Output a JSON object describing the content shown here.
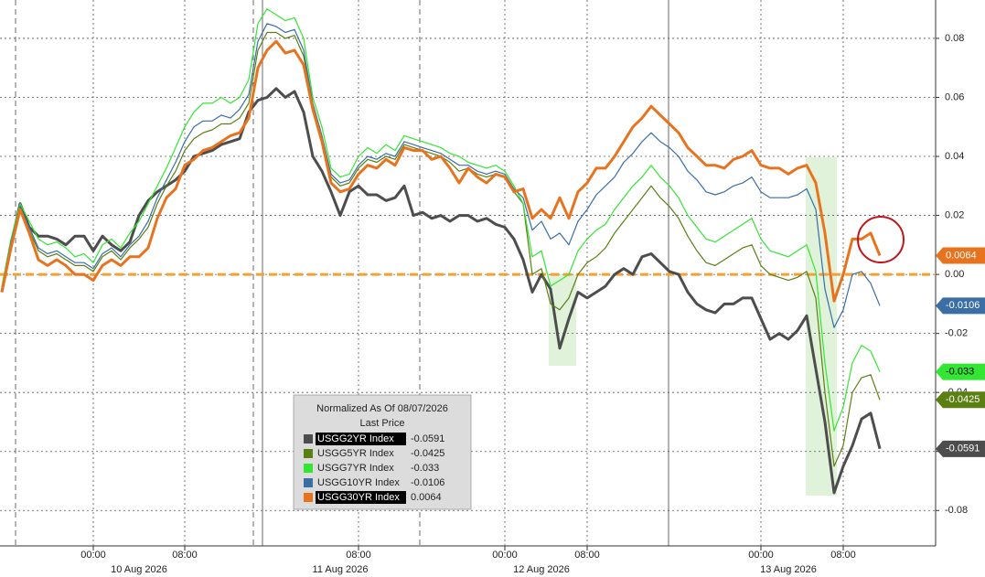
{
  "chart_data": {
    "type": "line",
    "categories": [
      null,
      null,
      null,
      null,
      null,
      null,
      null,
      null,
      null,
      null,
      "00:00",
      null,
      null,
      null,
      null,
      null,
      null,
      null,
      null,
      null,
      "08:00",
      null,
      null,
      null,
      null,
      null,
      null,
      null,
      null,
      null,
      null,
      null,
      null,
      null,
      null,
      null,
      null,
      null,
      null,
      "08:00",
      null,
      null,
      null,
      null,
      null,
      null,
      null,
      null,
      null,
      null,
      null,
      null,
      null,
      null,
      null,
      "00:00",
      null,
      null,
      null,
      null,
      null,
      null,
      null,
      null,
      "08:00",
      null,
      null,
      null,
      null,
      null,
      null,
      null,
      null,
      null,
      null,
      null,
      null,
      null,
      null,
      null,
      null,
      null,
      null,
      "00:00",
      null,
      null,
      null,
      null,
      null,
      null,
      null,
      null,
      "08:00",
      null,
      null,
      null,
      null
    ],
    "day_categories": [
      null,
      null,
      null,
      null,
      null,
      null,
      null,
      null,
      null,
      null,
      null,
      null,
      null,
      null,
      null,
      "10 Aug 2026",
      null,
      null,
      null,
      null,
      null,
      null,
      null,
      null,
      null,
      null,
      null,
      null,
      null,
      null,
      null,
      null,
      null,
      null,
      null,
      null,
      null,
      "11 Aug 2026",
      null,
      null,
      null,
      null,
      null,
      null,
      null,
      null,
      null,
      null,
      null,
      null,
      null,
      null,
      null,
      null,
      null,
      null,
      null,
      null,
      null,
      "12 Aug 2026",
      null,
      null,
      null,
      null,
      null,
      null,
      null,
      null,
      null,
      null,
      null,
      null,
      null,
      null,
      null,
      null,
      null,
      null,
      null,
      null,
      null,
      null,
      null,
      null,
      null,
      null,
      "13 Aug 2026",
      null,
      null,
      null,
      null,
      null,
      null,
      null,
      null,
      null,
      null
    ],
    "ylim": [
      -0.092,
      0.093
    ],
    "yticks": [
      0.08,
      0.06,
      0.04,
      0.02,
      {
        "value": 0,
        "label": "0.00"
      },
      -0.02,
      -0.04,
      -0.06,
      -0.08
    ],
    "grid": true,
    "zero_line_color": "#f5a030",
    "legend_title": "Normalized As Of 08/07/2026",
    "legend_subtitle": "Last Price",
    "series": [
      {
        "name": "USGG2YR Index",
        "color": "#4d4d4d",
        "width": 3,
        "legend_highlight": true,
        "values": [
          -0.006,
          0.01,
          0.024,
          0.016,
          0.013,
          0.013,
          0.012,
          0.01,
          0.013,
          0.013,
          0.008,
          0.013,
          0.01,
          0.008,
          0.011,
          0.02,
          0.025,
          0.028,
          0.03,
          0.032,
          0.035,
          0.04,
          0.041,
          0.042,
          0.044,
          0.045,
          0.046,
          0.055,
          0.059,
          0.06,
          0.063,
          0.06,
          0.062,
          0.055,
          0.04,
          0.035,
          0.028,
          0.02,
          0.028,
          0.03,
          0.027,
          0.027,
          0.025,
          0.026,
          0.03,
          0.02,
          0.021,
          0.019,
          0.02,
          0.018,
          0.02,
          0.02,
          0.018,
          0.019,
          0.017,
          0.016,
          0.012,
          0.005,
          -0.006,
          0.0,
          -0.005,
          -0.025,
          -0.015,
          -0.006,
          -0.008,
          -0.006,
          -0.004,
          0.0,
          0.002,
          0.0,
          0.006,
          0.007,
          0.004,
          0.001,
          0.0,
          -0.006,
          -0.01,
          -0.012,
          -0.013,
          -0.01,
          -0.01,
          -0.008,
          -0.008,
          -0.015,
          -0.022,
          -0.02,
          -0.022,
          -0.019,
          -0.014,
          -0.032,
          -0.05,
          -0.074,
          -0.065,
          -0.058,
          -0.049,
          -0.047,
          -0.0591
        ]
      },
      {
        "name": "USGG5YR Index",
        "color": "#5b7f12",
        "width": 1.2,
        "legend_highlight": false,
        "values": [
          -0.005,
          0.01,
          0.023,
          0.015,
          0.008,
          0.006,
          0.007,
          0.005,
          0.003,
          0.003,
          0.001,
          0.006,
          0.008,
          0.005,
          0.009,
          0.012,
          0.016,
          0.024,
          0.03,
          0.035,
          0.042,
          0.046,
          0.048,
          0.049,
          0.051,
          0.051,
          0.053,
          0.058,
          0.076,
          0.082,
          0.082,
          0.08,
          0.081,
          0.074,
          0.057,
          0.046,
          0.033,
          0.03,
          0.031,
          0.036,
          0.039,
          0.038,
          0.04,
          0.039,
          0.044,
          0.043,
          0.042,
          0.041,
          0.04,
          0.038,
          0.035,
          0.036,
          0.034,
          0.033,
          0.034,
          0.033,
          0.028,
          0.024,
          0.0,
          0.002,
          -0.01,
          -0.012,
          -0.008,
          0.0,
          0.004,
          0.006,
          0.009,
          0.014,
          0.018,
          0.022,
          0.026,
          0.03,
          0.026,
          0.023,
          0.019,
          0.013,
          0.008,
          0.004,
          0.003,
          0.005,
          0.007,
          0.009,
          0.01,
          0.003,
          0.0,
          -0.001,
          -0.002,
          -0.001,
          0.001,
          -0.008,
          -0.04,
          -0.065,
          -0.058,
          -0.04,
          -0.035,
          -0.034,
          -0.0425
        ]
      },
      {
        "name": "USGG7YR Index",
        "color": "#33e633",
        "width": 1.2,
        "legend_highlight": false,
        "values": [
          -0.004,
          0.012,
          0.024,
          0.018,
          0.012,
          0.01,
          0.011,
          0.009,
          0.006,
          0.007,
          0.004,
          0.01,
          0.012,
          0.009,
          0.014,
          0.018,
          0.024,
          0.03,
          0.036,
          0.043,
          0.05,
          0.055,
          0.058,
          0.058,
          0.06,
          0.058,
          0.06,
          0.066,
          0.085,
          0.09,
          0.088,
          0.086,
          0.087,
          0.08,
          0.06,
          0.05,
          0.036,
          0.033,
          0.034,
          0.04,
          0.043,
          0.041,
          0.044,
          0.042,
          0.047,
          0.046,
          0.045,
          0.044,
          0.043,
          0.041,
          0.04,
          0.038,
          0.037,
          0.036,
          0.037,
          0.035,
          0.03,
          0.024,
          0.006,
          0.008,
          -0.004,
          -0.002,
          0.0,
          0.008,
          0.012,
          0.015,
          0.017,
          0.022,
          0.026,
          0.03,
          0.033,
          0.037,
          0.033,
          0.03,
          0.026,
          0.02,
          0.016,
          0.012,
          0.011,
          0.013,
          0.015,
          0.017,
          0.019,
          0.012,
          0.008,
          0.007,
          0.006,
          0.008,
          0.01,
          0.001,
          -0.03,
          -0.053,
          -0.045,
          -0.03,
          -0.024,
          -0.026,
          -0.033
        ]
      },
      {
        "name": "USGG10YR Index",
        "color": "#3a6ea5",
        "width": 1.2,
        "legend_highlight": false,
        "values": [
          -0.005,
          0.011,
          0.023,
          0.016,
          0.009,
          0.007,
          0.008,
          0.006,
          0.004,
          0.004,
          0.002,
          0.007,
          0.009,
          0.006,
          0.01,
          0.013,
          0.018,
          0.026,
          0.032,
          0.038,
          0.045,
          0.05,
          0.052,
          0.052,
          0.054,
          0.053,
          0.056,
          0.061,
          0.079,
          0.085,
          0.084,
          0.082,
          0.083,
          0.076,
          0.058,
          0.047,
          0.034,
          0.031,
          0.032,
          0.037,
          0.04,
          0.039,
          0.041,
          0.04,
          0.045,
          0.044,
          0.043,
          0.042,
          0.041,
          0.039,
          0.037,
          0.037,
          0.035,
          0.034,
          0.035,
          0.034,
          0.029,
          0.026,
          0.015,
          0.018,
          0.012,
          0.014,
          0.01,
          0.018,
          0.022,
          0.027,
          0.03,
          0.033,
          0.038,
          0.041,
          0.045,
          0.048,
          0.045,
          0.043,
          0.04,
          0.035,
          0.032,
          0.028,
          0.027,
          0.028,
          0.03,
          0.031,
          0.033,
          0.028,
          0.026,
          0.026,
          0.026,
          0.027,
          0.029,
          0.022,
          -0.005,
          -0.018,
          -0.012,
          0.0,
          0.001,
          -0.003,
          -0.0106
        ]
      },
      {
        "name": "USGG30YR Index",
        "color": "#e8731e",
        "width": 3,
        "legend_highlight": true,
        "values": [
          -0.006,
          0.009,
          0.022,
          0.014,
          0.005,
          0.003,
          0.005,
          0.003,
          0,
          0,
          -0.002,
          0.003,
          0.005,
          0.003,
          0.006,
          0.006,
          0.009,
          0.019,
          0.026,
          0.029,
          0.037,
          0.039,
          0.042,
          0.043,
          0.045,
          0.047,
          0.048,
          0.053,
          0.07,
          0.076,
          0.079,
          0.075,
          0.076,
          0.071,
          0.056,
          0.045,
          0.031,
          0.028,
          0.029,
          0.034,
          0.037,
          0.036,
          0.039,
          0.037,
          0.043,
          0.042,
          0.042,
          0.039,
          0.04,
          0.036,
          0.031,
          0.036,
          0.033,
          0.031,
          0.034,
          0.033,
          0.028,
          0.029,
          0.019,
          0.022,
          0.019,
          0.026,
          0.019,
          0.028,
          0.031,
          0.036,
          0.036,
          0.04,
          0.045,
          0.05,
          0.053,
          0.057,
          0.054,
          0.051,
          0.048,
          0.043,
          0.04,
          0.037,
          0.037,
          0.036,
          0.039,
          0.04,
          0.042,
          0.037,
          0.036,
          0.036,
          0.034,
          0.036,
          0.037,
          0.031,
          0.014,
          -0.009,
          0,
          0.012,
          0.012,
          0.014,
          0.0064
        ]
      }
    ]
  }
}
